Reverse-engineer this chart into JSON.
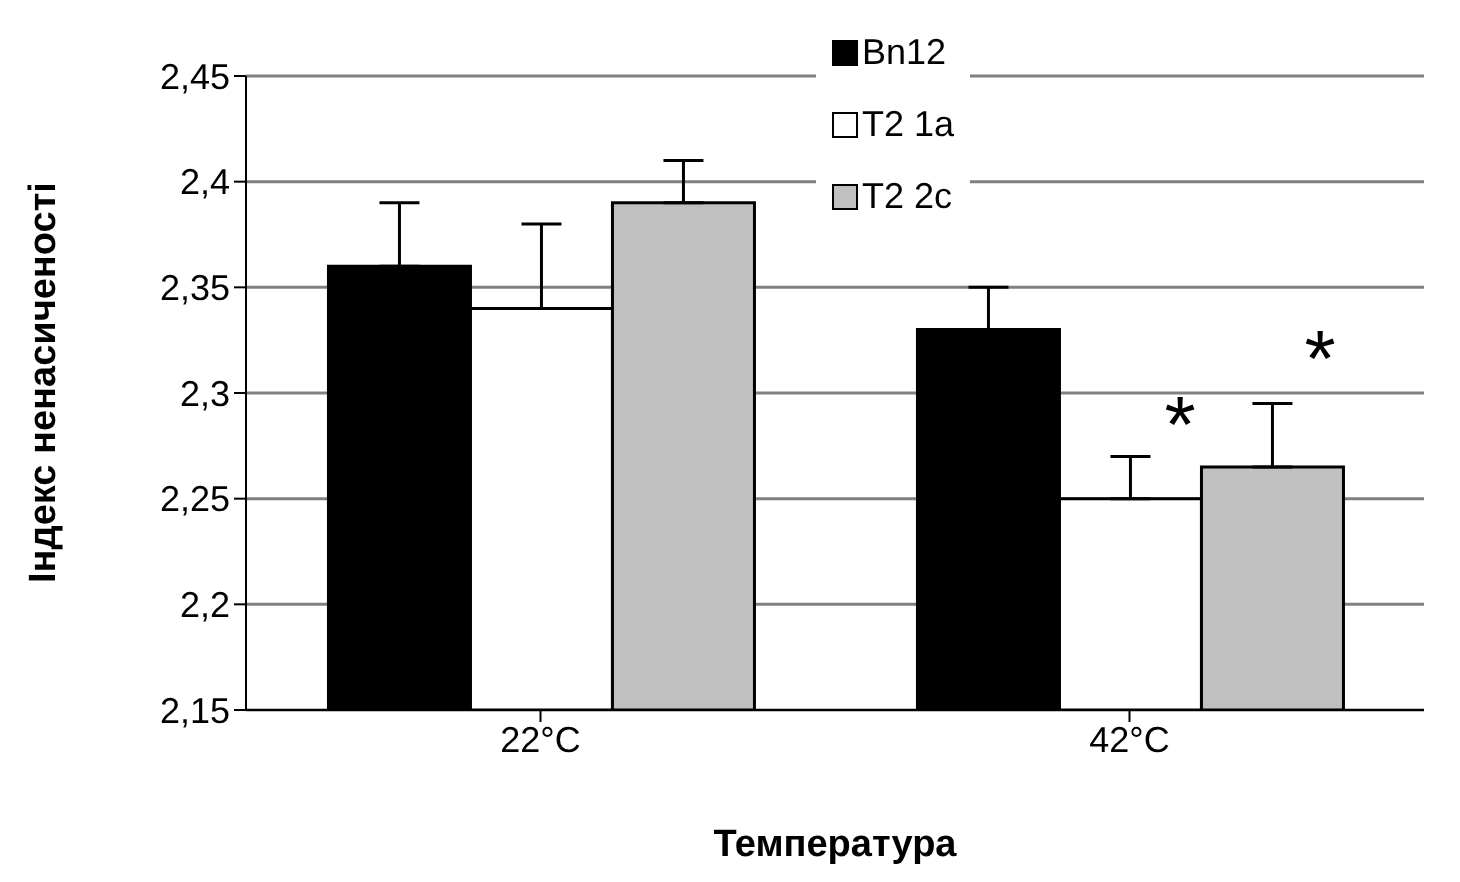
{
  "chart_data": {
    "type": "bar",
    "xlabel": "Температура",
    "ylabel": "Індекс ненасиченості",
    "categories": [
      "22°C",
      "42°C"
    ],
    "series": [
      {
        "name": "Bn12",
        "color": "#000000",
        "values": [
          2.36,
          2.33
        ],
        "errors": [
          [
            2.36,
            2.39
          ],
          [
            2.33,
            2.35
          ]
        ]
      },
      {
        "name": "T2 1a",
        "color": "#ffffff",
        "values": [
          2.34,
          2.25
        ],
        "errors": [
          [
            2.34,
            2.38
          ],
          [
            2.25,
            2.27
          ]
        ]
      },
      {
        "name": "T2 2c",
        "color": "#c0c0c0",
        "values": [
          2.39,
          2.265
        ],
        "errors": [
          [
            2.39,
            2.41
          ],
          [
            2.265,
            2.295
          ]
        ]
      }
    ],
    "ylim": [
      2.15,
      2.45
    ],
    "yticks": [
      {
        "value": 2.15,
        "label": "2,15"
      },
      {
        "value": 2.2,
        "label": "2,2"
      },
      {
        "value": 2.25,
        "label": "2,25"
      },
      {
        "value": 2.3,
        "label": "2,3"
      },
      {
        "value": 2.35,
        "label": "2,35"
      },
      {
        "value": 2.4,
        "label": "2,4"
      },
      {
        "value": 2.45,
        "label": "2,45"
      }
    ],
    "annotations": [
      "*",
      "*"
    ],
    "grid": "y",
    "legend": "top"
  }
}
